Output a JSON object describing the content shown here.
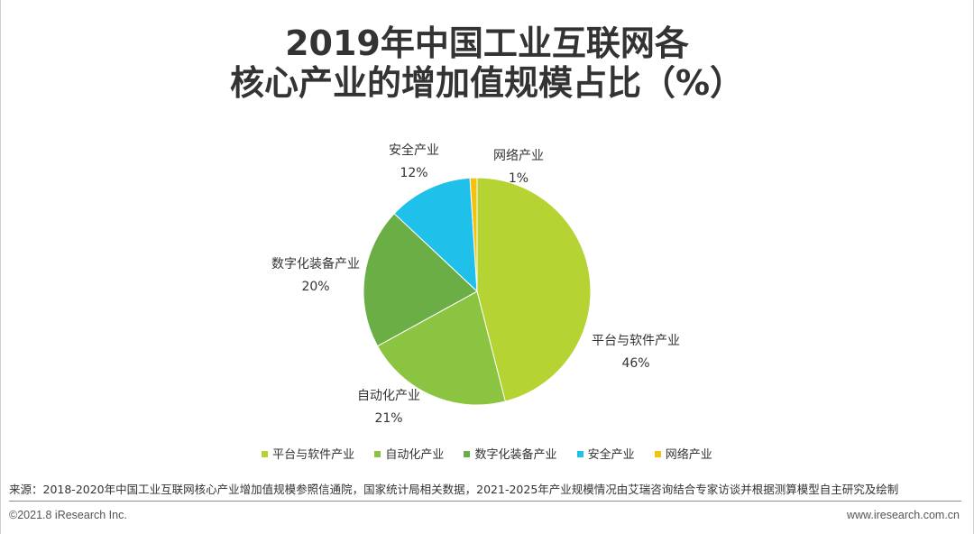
{
  "title": {
    "line1": "2019年中国工业互联网各",
    "line2": "核心产业的增加值规模占比（%）"
  },
  "chart_data": {
    "type": "pie",
    "title": "2019年中国工业互联网各核心产业的增加值规模占比（%）",
    "slices": [
      {
        "name": "平台与软件产业",
        "value": 46,
        "label": "46%",
        "color": "#b5d333"
      },
      {
        "name": "自动化产业",
        "value": 21,
        "label": "21%",
        "color": "#8bc440"
      },
      {
        "name": "数字化装备产业",
        "value": 20,
        "label": "20%",
        "color": "#6aae45"
      },
      {
        "name": "安全产业",
        "value": 12,
        "label": "12%",
        "color": "#1fc0ea"
      },
      {
        "name": "网络产业",
        "value": 1,
        "label": "1%",
        "color": "#f3c30f"
      }
    ],
    "legend_position": "bottom"
  },
  "legend": [
    {
      "label": "平台与软件产业",
      "color": "#b5d333"
    },
    {
      "label": "自动化产业",
      "color": "#8bc440"
    },
    {
      "label": "数字化装备产业",
      "color": "#6aae45"
    },
    {
      "label": "安全产业",
      "color": "#1fc0ea"
    },
    {
      "label": "网络产业",
      "color": "#f3c30f"
    }
  ],
  "footer": {
    "source": "来源：2018-2020年中国工业互联网核心产业增加值规模参照信通院，国家统计局相关数据，2021-2025年产业规模情况由艾瑞咨询结合专家访谈并根据测算模型自主研究及绘制",
    "copyright": "©2021.8 iResearch Inc.",
    "website": "www.iresearch.com.cn"
  }
}
